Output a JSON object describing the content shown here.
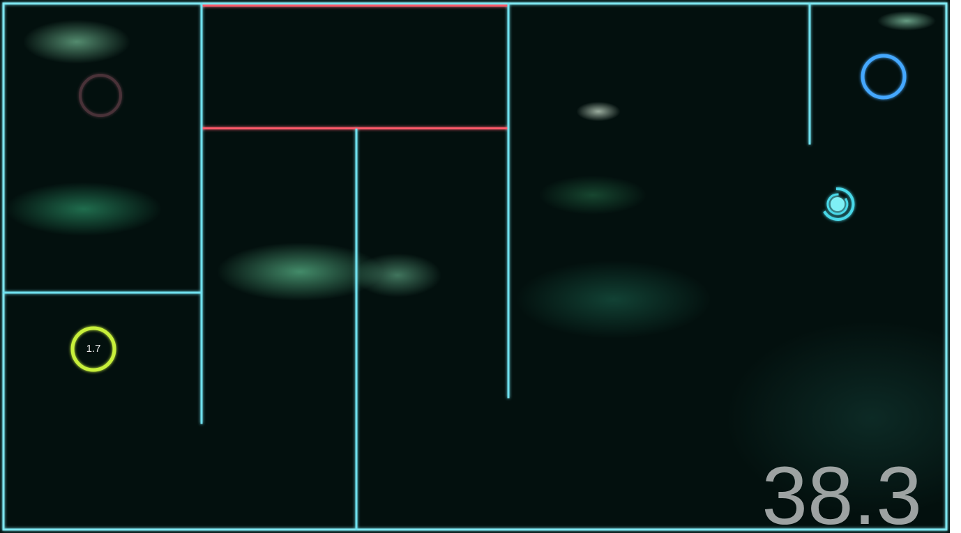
{
  "pickup": {
    "label": 1.7
  },
  "hud": {
    "timer": 38.3
  }
}
